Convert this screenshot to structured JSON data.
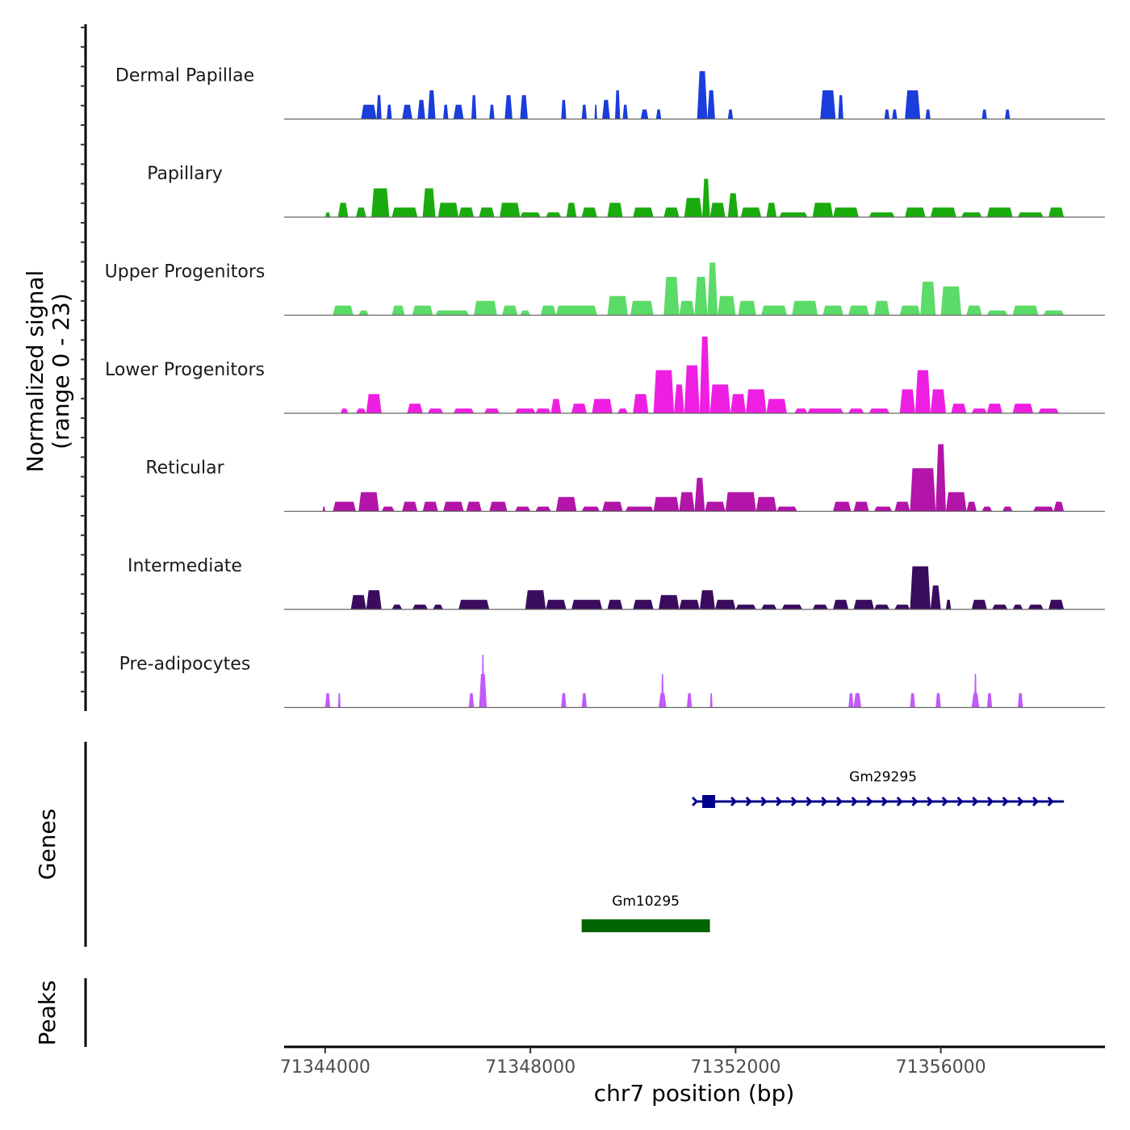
{
  "chart_data": {
    "type": "area",
    "title": "",
    "xlabel": "chr7 position (bp)",
    "ylabel": "Normalized signal\n(range 0 - 23)",
    "ylabel_lines": [
      "Normalized signal",
      "(range 0 - 23)"
    ],
    "xlim": [
      71343200,
      71359200
    ],
    "ylim": [
      0,
      23
    ],
    "x_ticks": [
      71344000,
      71348000,
      71352000,
      71356000
    ],
    "x_tick_labels": [
      "71344000",
      "71348000",
      "71352000",
      "71356000"
    ],
    "grid": false,
    "legend": "none",
    "panel_titles": {
      "genes": "Genes",
      "peaks": "Peaks"
    },
    "tracks": [
      {
        "name": "Dermal Papillae",
        "color": "#1a3ddb",
        "peaks": [
          [
            71344700,
            71345000,
            3
          ],
          [
            71345000,
            71345100,
            5
          ],
          [
            71345200,
            71345300,
            3
          ],
          [
            71345500,
            71345700,
            3
          ],
          [
            71345800,
            71345950,
            4
          ],
          [
            71346000,
            71346150,
            6
          ],
          [
            71346300,
            71346400,
            3
          ],
          [
            71346500,
            71346700,
            3
          ],
          [
            71346850,
            71346950,
            5
          ],
          [
            71347200,
            71347300,
            3
          ],
          [
            71347500,
            71347650,
            5
          ],
          [
            71347800,
            71347950,
            5
          ],
          [
            71348600,
            71348700,
            4
          ],
          [
            71349000,
            71349100,
            3
          ],
          [
            71349250,
            71349300,
            3
          ],
          [
            71349400,
            71349550,
            4
          ],
          [
            71349650,
            71349750,
            6
          ],
          [
            71349800,
            71349900,
            3
          ],
          [
            71350150,
            71350300,
            2
          ],
          [
            71350450,
            71350550,
            2
          ],
          [
            71351250,
            71351450,
            10
          ],
          [
            71351450,
            71351600,
            6
          ],
          [
            71351850,
            71351950,
            2
          ],
          [
            71353650,
            71353950,
            6
          ],
          [
            71354000,
            71354100,
            5
          ],
          [
            71354900,
            71355000,
            2
          ],
          [
            71355050,
            71355150,
            2
          ],
          [
            71355300,
            71355600,
            6
          ],
          [
            71355700,
            71355800,
            2
          ],
          [
            71356800,
            71356900,
            2
          ],
          [
            71357250,
            71357350,
            2
          ]
        ]
      },
      {
        "name": "Papillary",
        "color": "#1aab0e",
        "peaks": [
          [
            71344000,
            71344100,
            1
          ],
          [
            71344250,
            71344450,
            3
          ],
          [
            71344600,
            71344800,
            2
          ],
          [
            71344900,
            71345250,
            6
          ],
          [
            71345300,
            71345800,
            2
          ],
          [
            71345900,
            71346150,
            6
          ],
          [
            71346200,
            71346600,
            3
          ],
          [
            71346600,
            71346900,
            2
          ],
          [
            71347000,
            71347300,
            2
          ],
          [
            71347400,
            71347800,
            3
          ],
          [
            71347800,
            71348200,
            1
          ],
          [
            71348300,
            71348600,
            1
          ],
          [
            71348700,
            71348900,
            3
          ],
          [
            71349000,
            71349300,
            2
          ],
          [
            71349500,
            71349800,
            3
          ],
          [
            71350000,
            71350400,
            2
          ],
          [
            71350600,
            71350900,
            2
          ],
          [
            71351000,
            71351350,
            4
          ],
          [
            71351350,
            71351500,
            8
          ],
          [
            71351500,
            71351800,
            3
          ],
          [
            71351850,
            71352050,
            5
          ],
          [
            71352100,
            71352500,
            2
          ],
          [
            71352600,
            71352800,
            3
          ],
          [
            71352850,
            71353400,
            1
          ],
          [
            71353500,
            71353900,
            3
          ],
          [
            71353900,
            71354400,
            2
          ],
          [
            71354600,
            71355100,
            1
          ],
          [
            71355300,
            71355700,
            2
          ],
          [
            71355800,
            71356300,
            2
          ],
          [
            71356400,
            71356800,
            1
          ],
          [
            71356900,
            71357400,
            2
          ],
          [
            71357500,
            71358000,
            1
          ],
          [
            71358100,
            71358400,
            2
          ]
        ]
      },
      {
        "name": "Upper Progenitors",
        "color": "#5bdb67",
        "peaks": [
          [
            71344150,
            71344550,
            2
          ],
          [
            71344650,
            71344850,
            1
          ],
          [
            71345300,
            71345550,
            2
          ],
          [
            71345700,
            71346100,
            2
          ],
          [
            71346150,
            71346800,
            1
          ],
          [
            71346900,
            71347350,
            3
          ],
          [
            71347450,
            71347750,
            2
          ],
          [
            71347800,
            71348000,
            1
          ],
          [
            71348200,
            71348500,
            2
          ],
          [
            71348500,
            71349300,
            2
          ],
          [
            71349500,
            71349900,
            4
          ],
          [
            71349950,
            71350400,
            3
          ],
          [
            71350600,
            71350900,
            8
          ],
          [
            71350900,
            71351200,
            3
          ],
          [
            71351200,
            71351450,
            8
          ],
          [
            71351450,
            71351650,
            11
          ],
          [
            71351650,
            71352000,
            4
          ],
          [
            71352050,
            71352400,
            3
          ],
          [
            71352500,
            71353000,
            2
          ],
          [
            71353100,
            71353600,
            3
          ],
          [
            71353700,
            71354100,
            2
          ],
          [
            71354200,
            71354600,
            2
          ],
          [
            71354700,
            71355000,
            3
          ],
          [
            71355200,
            71355600,
            2
          ],
          [
            71355600,
            71355900,
            7
          ],
          [
            71356000,
            71356400,
            6
          ],
          [
            71356500,
            71356800,
            2
          ],
          [
            71356900,
            71357300,
            1
          ],
          [
            71357400,
            71357900,
            2
          ],
          [
            71358000,
            71358400,
            1
          ]
        ]
      },
      {
        "name": "Lower Progenitors",
        "color": "#ee1fe2",
        "peaks": [
          [
            71344300,
            71344450,
            1
          ],
          [
            71344600,
            71344800,
            1
          ],
          [
            71344800,
            71345100,
            4
          ],
          [
            71345600,
            71345900,
            2
          ],
          [
            71346000,
            71346300,
            1
          ],
          [
            71346500,
            71346900,
            1
          ],
          [
            71347100,
            71347400,
            1
          ],
          [
            71347700,
            71348100,
            1
          ],
          [
            71348100,
            71348400,
            1
          ],
          [
            71348400,
            71348600,
            3
          ],
          [
            71348800,
            71349100,
            2
          ],
          [
            71349200,
            71349600,
            3
          ],
          [
            71349700,
            71349900,
            1
          ],
          [
            71350000,
            71350300,
            4
          ],
          [
            71350400,
            71350800,
            9
          ],
          [
            71350800,
            71351000,
            6
          ],
          [
            71351000,
            71351300,
            10
          ],
          [
            71351300,
            71351500,
            16
          ],
          [
            71351500,
            71351900,
            6
          ],
          [
            71351900,
            71352200,
            4
          ],
          [
            71352200,
            71352600,
            5
          ],
          [
            71352600,
            71353000,
            3
          ],
          [
            71353150,
            71353400,
            1
          ],
          [
            71353400,
            71354100,
            1
          ],
          [
            71354200,
            71354500,
            1
          ],
          [
            71354600,
            71355000,
            1
          ],
          [
            71355200,
            71355500,
            5
          ],
          [
            71355500,
            71355800,
            9
          ],
          [
            71355800,
            71356100,
            5
          ],
          [
            71356200,
            71356500,
            2
          ],
          [
            71356600,
            71356900,
            1
          ],
          [
            71356900,
            71357200,
            2
          ],
          [
            71357400,
            71357800,
            2
          ],
          [
            71357900,
            71358300,
            1
          ]
        ]
      },
      {
        "name": "Reticular",
        "color": "#b215a8",
        "peaks": [
          [
            71343950,
            71344000,
            1
          ],
          [
            71344150,
            71344600,
            2
          ],
          [
            71344650,
            71345050,
            4
          ],
          [
            71345100,
            71345350,
            1
          ],
          [
            71345500,
            71345800,
            2
          ],
          [
            71345900,
            71346200,
            2
          ],
          [
            71346300,
            71346700,
            2
          ],
          [
            71346750,
            71347050,
            2
          ],
          [
            71347200,
            71347550,
            2
          ],
          [
            71347700,
            71348000,
            1
          ],
          [
            71348100,
            71348400,
            1
          ],
          [
            71348500,
            71348900,
            3
          ],
          [
            71349000,
            71349350,
            1
          ],
          [
            71349400,
            71349800,
            2
          ],
          [
            71349850,
            71350400,
            1
          ],
          [
            71350400,
            71350900,
            3
          ],
          [
            71350900,
            71351200,
            4
          ],
          [
            71351200,
            71351400,
            7
          ],
          [
            71351400,
            71351800,
            2
          ],
          [
            71351800,
            71352400,
            4
          ],
          [
            71352400,
            71352800,
            3
          ],
          [
            71352800,
            71353200,
            1
          ],
          [
            71353900,
            71354250,
            2
          ],
          [
            71354300,
            71354600,
            2
          ],
          [
            71354700,
            71355050,
            1
          ],
          [
            71355100,
            71355400,
            2
          ],
          [
            71355400,
            71355900,
            9
          ],
          [
            71355900,
            71356100,
            14
          ],
          [
            71356100,
            71356500,
            4
          ],
          [
            71356500,
            71356700,
            2
          ],
          [
            71356800,
            71357000,
            1
          ],
          [
            71357200,
            71357400,
            1
          ],
          [
            71357800,
            71358200,
            1
          ],
          [
            71358200,
            71358400,
            2
          ]
        ]
      },
      {
        "name": "Intermediate",
        "color": "#3a0c5e",
        "peaks": [
          [
            71344500,
            71344800,
            3
          ],
          [
            71344800,
            71345100,
            4
          ],
          [
            71345300,
            71345500,
            1
          ],
          [
            71345700,
            71346000,
            1
          ],
          [
            71346100,
            71346300,
            1
          ],
          [
            71346600,
            71347200,
            2
          ],
          [
            71347900,
            71348300,
            4
          ],
          [
            71348300,
            71348700,
            2
          ],
          [
            71348800,
            71349400,
            2
          ],
          [
            71349500,
            71349800,
            2
          ],
          [
            71350000,
            71350400,
            2
          ],
          [
            71350500,
            71350900,
            3
          ],
          [
            71350900,
            71351300,
            2
          ],
          [
            71351300,
            71351600,
            4
          ],
          [
            71351600,
            71352000,
            2
          ],
          [
            71352000,
            71352400,
            1
          ],
          [
            71352500,
            71352800,
            1
          ],
          [
            71352900,
            71353300,
            1
          ],
          [
            71353500,
            71353800,
            1
          ],
          [
            71353900,
            71354200,
            2
          ],
          [
            71354300,
            71354700,
            2
          ],
          [
            71354700,
            71355000,
            1
          ],
          [
            71355100,
            71355400,
            1
          ],
          [
            71355400,
            71355800,
            9
          ],
          [
            71355800,
            71356000,
            5
          ],
          [
            71356100,
            71356200,
            2
          ],
          [
            71356600,
            71356900,
            2
          ],
          [
            71357000,
            71357300,
            1
          ],
          [
            71357400,
            71357600,
            1
          ],
          [
            71357700,
            71358000,
            1
          ],
          [
            71358100,
            71358400,
            2
          ]
        ]
      },
      {
        "name": "Pre-adipocytes",
        "color": "#c05af8",
        "peaks": [
          [
            71344000,
            71344100,
            3
          ],
          [
            71344250,
            71344300,
            3
          ],
          [
            71346800,
            71346900,
            3
          ],
          [
            71347050,
            71347100,
            11
          ],
          [
            71347000,
            71347150,
            7
          ],
          [
            71348600,
            71348700,
            3
          ],
          [
            71349000,
            71349100,
            3
          ],
          [
            71350500,
            71350650,
            3
          ],
          [
            71350550,
            71350600,
            7
          ],
          [
            71351050,
            71351150,
            3
          ],
          [
            71351500,
            71351550,
            3
          ],
          [
            71354200,
            71354300,
            3
          ],
          [
            71354300,
            71354450,
            3
          ],
          [
            71355400,
            71355500,
            3
          ],
          [
            71355900,
            71356000,
            3
          ],
          [
            71356600,
            71356750,
            3
          ],
          [
            71356650,
            71356700,
            7
          ],
          [
            71356900,
            71357000,
            3
          ],
          [
            71357500,
            71357600,
            3
          ]
        ]
      }
    ],
    "genes": [
      {
        "name": "Gm29295",
        "start": 71351350,
        "end": 71358400,
        "strand": "+",
        "color": "#00008b",
        "row": 1
      },
      {
        "name": "Gm10295",
        "start": 71349000,
        "end": 71351500,
        "strand": "",
        "color": "#006400",
        "row": 2
      }
    ],
    "peak_regions": []
  }
}
